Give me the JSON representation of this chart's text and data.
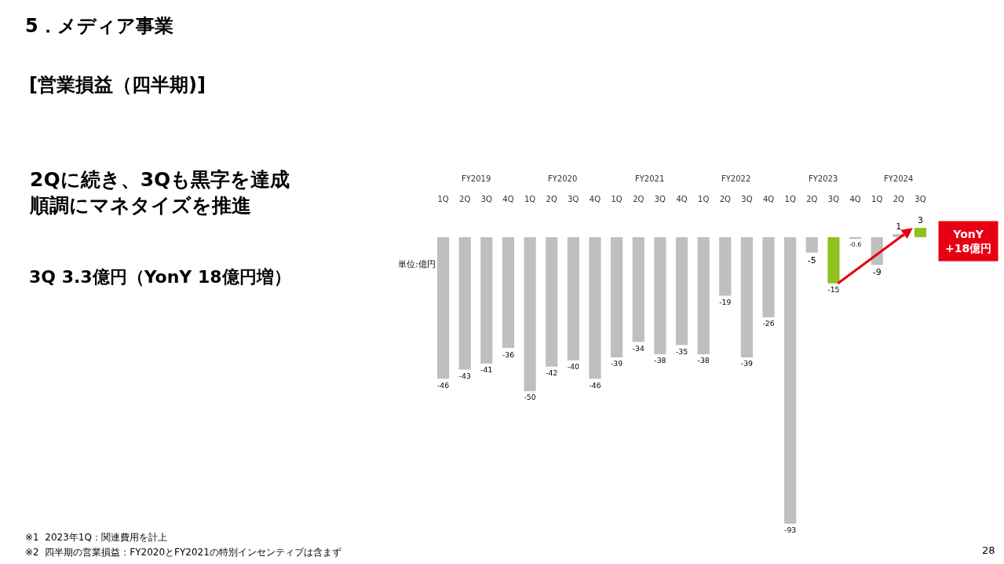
{
  "chart_data": {
    "type": "bar",
    "title": "5．メディア事業",
    "subtitle": "[営業損益（四半期)]",
    "categories": [
      "1Q",
      "2Q",
      "3Q",
      "4Q",
      "1Q",
      "2Q",
      "3Q",
      "4Q",
      "1Q",
      "2Q",
      "3Q",
      "4Q",
      "1Q",
      "2Q",
      "3Q",
      "4Q",
      "1Q",
      "2Q",
      "3Q",
      "4Q",
      "1Q",
      "2Q",
      "3Q"
    ],
    "values": [
      -46,
      -43,
      -41,
      -36,
      -50,
      -42,
      -40,
      -46,
      -39,
      -34,
      -38,
      -35,
      -38,
      -19,
      -39,
      -26,
      -93,
      -5,
      -15,
      -0.6,
      -9,
      1,
      3
    ],
    "colors": [
      "#bfbfbf",
      "#bfbfbf",
      "#bfbfbf",
      "#bfbfbf",
      "#bfbfbf",
      "#bfbfbf",
      "#bfbfbf",
      "#bfbfbf",
      "#bfbfbf",
      "#bfbfbf",
      "#bfbfbf",
      "#bfbfbf",
      "#bfbfbf",
      "#bfbfbf",
      "#bfbfbf",
      "#bfbfbf",
      "#bfbfbf",
      "#bfbfbf",
      "#8dc21f",
      "#bfbfbf",
      "#bfbfbf",
      "#bfbfbf",
      "#8dc21f"
    ],
    "data_labels": true,
    "grid": false,
    "legend": false,
    "annotations": [
      "FY2019",
      "FY2020",
      "FY2021",
      "FY2022",
      "FY2023",
      "FY2024",
      "2Qに続き、3Qも黒字を達成順調にマネタイズを推進",
      "3Q 3.3億円（YonY 18億円増）",
      "単位:億円",
      "YonY\n+18億円",
      "※1  2023年1Q：関連費用を計上",
      "※2  四半期の営業損益：FY2020とFY2021の特別インセンティブは含まず",
      "28"
    ]
  }
}
